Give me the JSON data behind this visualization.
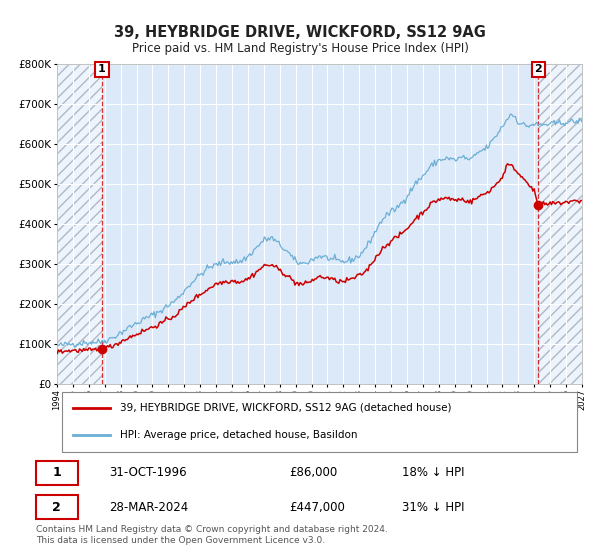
{
  "title": "39, HEYBRIDGE DRIVE, WICKFORD, SS12 9AG",
  "subtitle": "Price paid vs. HM Land Registry's House Price Index (HPI)",
  "ytick_values": [
    0,
    100000,
    200000,
    300000,
    400000,
    500000,
    600000,
    700000,
    800000
  ],
  "ylim": [
    0,
    800000
  ],
  "xlim_start": 1994,
  "xlim_end": 2027,
  "xticks": [
    1994,
    1995,
    1996,
    1997,
    1998,
    1999,
    2000,
    2001,
    2002,
    2003,
    2004,
    2005,
    2006,
    2007,
    2008,
    2009,
    2010,
    2011,
    2012,
    2013,
    2014,
    2015,
    2016,
    2017,
    2018,
    2019,
    2020,
    2021,
    2022,
    2023,
    2024,
    2025,
    2026,
    2027
  ],
  "hpi_color": "#6baed6",
  "price_color": "#cc0000",
  "annotation_box_color": "#cc0000",
  "point1_x": 1996.83,
  "point1_y": 86000,
  "point2_x": 2024.25,
  "point2_y": 447000,
  "legend_line1": "39, HEYBRIDGE DRIVE, WICKFORD, SS12 9AG (detached house)",
  "legend_line2": "HPI: Average price, detached house, Basildon",
  "table_row1": [
    "1",
    "31-OCT-1996",
    "£86,000",
    "18% ↓ HPI"
  ],
  "table_row2": [
    "2",
    "28-MAR-2024",
    "£447,000",
    "31% ↓ HPI"
  ],
  "footer": "Contains HM Land Registry data © Crown copyright and database right 2024.\nThis data is licensed under the Open Government Licence v3.0.",
  "background_color": "#ffffff",
  "plot_bg_color": "#dce9f8",
  "grid_color": "#ffffff",
  "hatch_color": "#b0b8c8"
}
